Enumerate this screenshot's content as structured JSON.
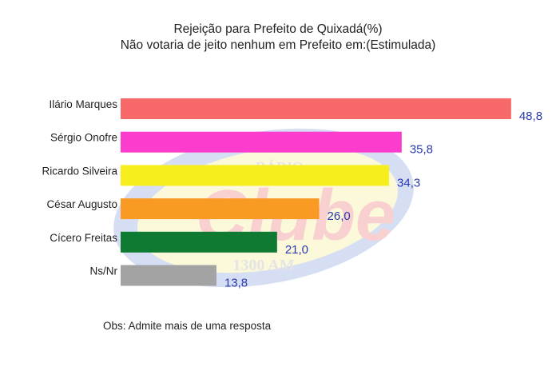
{
  "chart_data": {
    "type": "bar",
    "orientation": "horizontal",
    "title": "Rejeição para Prefeito de Quixadá(%)",
    "subtitle": "Não votaria de jeito nenhum em Prefeito em:(Estimulada)",
    "categories": [
      "Ilário Marques",
      "Sérgio Onofre",
      "Ricardo Silveira",
      "César Augusto",
      "Cícero Freitas",
      "Ns/Nr"
    ],
    "values": [
      48.8,
      35.8,
      34.3,
      26.0,
      21.0,
      13.8
    ],
    "value_labels": [
      "48,8",
      "35,8",
      "34,3",
      "26,0",
      "21,0",
      "13,8"
    ],
    "colors": [
      "#f76868",
      "#fb3ccc",
      "#f6ee1d",
      "#f99a25",
      "#0f7a32",
      "#a3a3a3"
    ],
    "value_label_color": "#2a3ab0",
    "xlabel": "",
    "ylabel": "",
    "grid": false,
    "legend": "none",
    "note": "Obs: Admite mais de uma resposta"
  },
  "watermark": {
    "brand": "Rádio Clube",
    "top": "RÁDIO",
    "main": "Clube",
    "bottom": "1300 AM"
  }
}
